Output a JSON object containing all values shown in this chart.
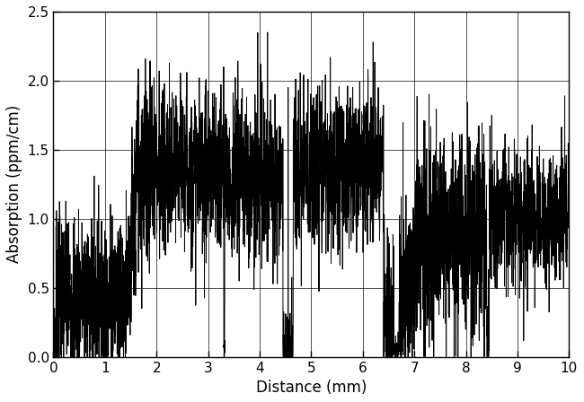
{
  "title": "",
  "xlabel": "Distance (mm)",
  "ylabel": "Absorption (ppm/cm)",
  "xlim": [
    0,
    10
  ],
  "ylim": [
    0,
    2.5
  ],
  "xticks": [
    0,
    1,
    2,
    3,
    4,
    5,
    6,
    7,
    8,
    9,
    10
  ],
  "yticks": [
    0,
    0.5,
    1.0,
    1.5,
    2.0,
    2.5
  ],
  "line_color": "#000000",
  "line_width": 0.7,
  "background_color": "#ffffff",
  "grid_color": "#000000",
  "grid_linewidth": 0.6,
  "figsize": [
    6.5,
    4.48
  ],
  "dpi": 100
}
